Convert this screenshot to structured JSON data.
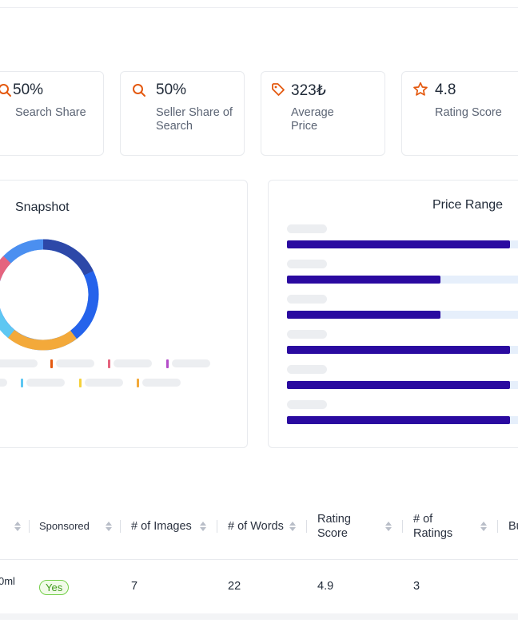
{
  "kpis": [
    {
      "icon": "search-icon",
      "value": "50%",
      "label": "Search Share"
    },
    {
      "icon": "search-icon",
      "value": "50%",
      "label": "Seller Share of Search"
    },
    {
      "icon": "tag-icon",
      "value": "323₺",
      "label": "Average Price"
    },
    {
      "icon": "star-icon",
      "value": "4.8",
      "label": "Rating Score"
    }
  ],
  "accent_color": "#e4590f",
  "snapshot": {
    "title": "Snapshot",
    "colors": [
      "#2d48a8",
      "#2563eb",
      "#f3a93a",
      "#5ec7f2",
      "#e5647e",
      "#4b8ff0"
    ]
  },
  "price_range": {
    "title": "Price Range",
    "bar_color": "#2a0aa0",
    "track_color": "#e6effb",
    "levels": [
      0.93,
      0.64,
      0.64,
      0.93,
      0.93,
      0.93
    ]
  },
  "table": {
    "columns": [
      "Sponsored",
      "# of Images",
      "# of Words",
      "Rating Score",
      "# of Ratings",
      "Bu"
    ],
    "row": {
      "name_fragment": "0ml",
      "sponsored": "Yes",
      "images": "7",
      "words": "22",
      "rating_score": "4.9",
      "ratings": "3"
    }
  }
}
